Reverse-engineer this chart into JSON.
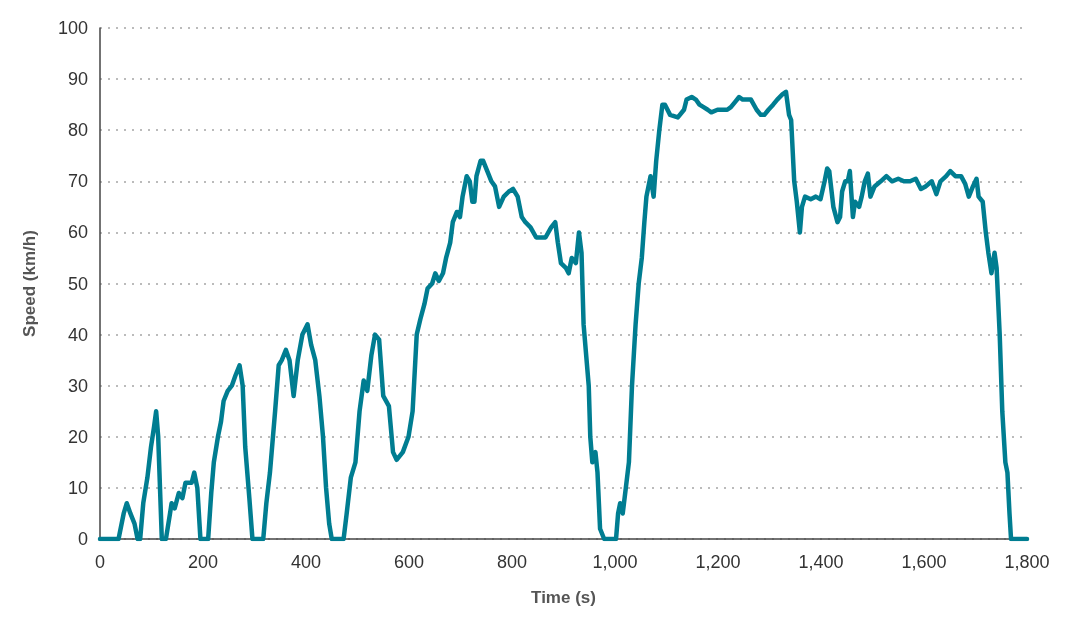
{
  "chart_data": {
    "type": "line",
    "xlabel": "Time (s)",
    "ylabel": "Speed (km/h)",
    "xlim": [
      0,
      1800
    ],
    "xticks": [
      0,
      {
        "value": 200,
        "label": "200"
      },
      {
        "value": 400,
        "label": "400"
      },
      {
        "value": 600,
        "label": "600"
      },
      {
        "value": 800,
        "label": "800"
      },
      {
        "value": 1000,
        "label": "1,000"
      },
      {
        "value": 1200,
        "label": "1,200"
      },
      {
        "value": 1400,
        "label": "1,400"
      },
      {
        "value": 1600,
        "label": "1,600"
      },
      {
        "value": 1800,
        "label": "1,800"
      }
    ],
    "ylim": [
      0,
      100
    ],
    "yticks": [
      0,
      10,
      20,
      30,
      40,
      50,
      60,
      70,
      80,
      90,
      100
    ],
    "grid": "y",
    "marker": "none",
    "line_style": "solid",
    "series": [
      {
        "color": "#007d91",
        "x": [
          0,
          36,
          46,
          52,
          59,
          67,
          73,
          78,
          84,
          92,
          99,
          105,
          109,
          113,
          120,
          128,
          136,
          139,
          145,
          153,
          160,
          166,
          178,
          183,
          189,
          195,
          210,
          216,
          221,
          229,
          235,
          240,
          248,
          256,
          263,
          271,
          277,
          282,
          290,
          296,
          317,
          323,
          330,
          340,
          347,
          353,
          361,
          368,
          376,
          384,
          393,
          403,
          410,
          418,
          426,
          433,
          439,
          445,
          450,
          473,
          479,
          487,
          496,
          504,
          512,
          519,
          527,
          534,
          542,
          550,
          561,
          569,
          576,
          588,
          599,
          607,
          615,
          622,
          630,
          636,
          645,
          651,
          658,
          666,
          672,
          680,
          685,
          693,
          699,
          704,
          712,
          718,
          723,
          727,
          731,
          739,
          744,
          752,
          760,
          767,
          775,
          784,
          794,
          802,
          811,
          819,
          826,
          836,
          847,
          857,
          865,
          876,
          884,
          889,
          895,
          905,
          910,
          916,
          924,
          930,
          935,
          939,
          949,
          952,
          956,
          962,
          966,
          971,
          979,
          1002,
          1006,
          1010,
          1015,
          1021,
          1027,
          1033,
          1040,
          1046,
          1052,
          1057,
          1061,
          1069,
          1075,
          1080,
          1086,
          1092,
          1097,
          1107,
          1122,
          1134,
          1139,
          1149,
          1157,
          1164,
          1172,
          1180,
          1187,
          1199,
          1210,
          1218,
          1225,
          1233,
          1241,
          1248,
          1264,
          1275,
          1283,
          1290,
          1298,
          1307,
          1315,
          1325,
          1332,
          1338,
          1342,
          1348,
          1353,
          1359,
          1363,
          1369,
          1380,
          1390,
          1399,
          1407,
          1412,
          1416,
          1424,
          1432,
          1437,
          1441,
          1447,
          1452,
          1456,
          1462,
          1466,
          1474,
          1479,
          1485,
          1491,
          1496,
          1504,
          1516,
          1527,
          1538,
          1550,
          1561,
          1573,
          1584,
          1594,
          1603,
          1615,
          1624,
          1632,
          1643,
          1651,
          1661,
          1672,
          1680,
          1687,
          1695,
          1702,
          1706,
          1714,
          1720,
          1725,
          1731,
          1737,
          1741,
          1747,
          1752,
          1758,
          1762,
          1766,
          1769,
          1800
        ],
        "values": [
          0,
          0,
          5,
          7,
          5,
          3,
          0,
          0,
          7,
          12,
          18,
          22,
          25,
          20,
          0,
          0,
          5,
          7,
          6,
          9,
          8,
          11,
          11,
          13,
          10,
          0,
          0,
          9,
          15,
          20,
          23,
          27,
          29,
          30,
          32,
          34,
          30,
          18,
          8,
          0,
          0,
          7,
          13,
          25,
          34,
          35,
          37,
          35,
          28,
          35,
          40,
          42,
          38,
          35,
          28,
          20,
          10,
          3,
          0,
          0,
          5,
          12,
          15,
          25,
          31,
          29,
          36,
          40,
          39,
          28,
          26,
          17,
          15.5,
          17,
          20,
          25,
          40,
          43,
          46,
          49,
          50,
          52,
          50.5,
          52,
          55,
          58,
          62,
          64,
          63,
          67,
          71,
          70,
          66,
          66,
          71,
          74,
          74,
          72,
          70,
          69,
          65,
          67,
          68,
          68.5,
          67,
          63,
          62,
          61,
          59,
          59,
          59,
          61,
          62,
          58,
          54,
          53,
          52,
          55,
          54,
          60,
          56,
          42,
          30,
          20,
          15,
          17,
          13,
          2,
          0,
          0,
          5,
          7,
          5,
          10,
          15,
          30,
          42,
          50,
          55,
          62,
          67,
          71,
          67,
          74,
          80,
          85,
          85,
          83,
          82.5,
          84,
          86,
          86.5,
          86,
          85,
          84.5,
          84,
          83.5,
          84,
          84,
          84,
          84.5,
          85.5,
          86.5,
          86,
          86,
          84,
          83,
          83,
          84,
          85,
          86,
          87,
          87.5,
          83,
          82,
          70,
          66,
          60,
          65,
          67,
          66.5,
          67,
          66.5,
          70,
          72.5,
          72,
          65,
          62,
          63,
          68,
          70,
          70,
          72,
          63,
          66,
          65,
          67,
          70,
          71.5,
          67,
          69,
          70,
          71,
          70,
          70.5,
          70,
          70,
          70.5,
          68.5,
          69,
          70,
          67.5,
          70,
          71,
          72,
          71,
          71,
          69.5,
          67,
          69,
          70.5,
          67,
          66,
          60,
          56,
          52,
          56,
          53,
          40,
          25,
          15,
          13,
          5,
          0,
          0
        ]
      }
    ]
  }
}
